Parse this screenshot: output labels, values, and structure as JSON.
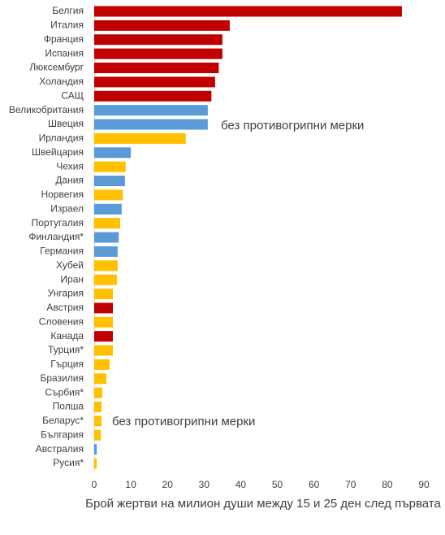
{
  "chart_data": {
    "type": "barh",
    "x_label": "Брой жертви на милион души между 15 и 25 ден след първата",
    "annotations": [
      "без противогрипни мерки",
      "без противогрипни мерки"
    ],
    "categories": [
      "Белгия",
      "Италия",
      "Франция",
      "Испания",
      "Люксембург",
      "Холандия",
      "САЩ",
      "Великобритания",
      "Швеция",
      "Ирландия",
      "Швейцария",
      "Чехия",
      "Дания",
      "Норвегия",
      "Израел",
      "Португалия",
      "Финландия*",
      "Германия",
      "Хубей",
      "Иран",
      "Унгария",
      "Австрия",
      "Словения",
      "Канада",
      "Турция*",
      "Гърция",
      "Бразилия",
      "Сърбия*",
      "Полша",
      "Беларус*",
      "България",
      "Австралия",
      "Русия*"
    ],
    "values": [
      84,
      37,
      35,
      35,
      34,
      33,
      32,
      31,
      31,
      25,
      10,
      8.6,
      8.4,
      7.8,
      7.5,
      7.1,
      6.7,
      6.4,
      6.4,
      6.2,
      5.1,
      5.1,
      5.1,
      5.1,
      5.1,
      4.2,
      3.3,
      2.2,
      2,
      2,
      1.8,
      0.7,
      0.7
    ],
    "colors": [
      "#c00000",
      "#c00000",
      "#c00000",
      "#c00000",
      "#c00000",
      "#c00000",
      "#c00000",
      "#5b9bd5",
      "#5b9bd5",
      "#ffc000",
      "#5b9bd5",
      "#ffc000",
      "#5b9bd5",
      "#ffc000",
      "#5b9bd5",
      "#ffc000",
      "#5b9bd5",
      "#5b9bd5",
      "#ffc000",
      "#ffc000",
      "#ffc000",
      "#c00000",
      "#ffc000",
      "#c00000",
      "#ffc000",
      "#ffc000",
      "#ffc000",
      "#ffc000",
      "#ffc000",
      "#ffc000",
      "#ffc000",
      "#5b9bd5",
      "#ffc000"
    ],
    "xlim": [
      0,
      90
    ],
    "xticks": [
      0,
      10,
      20,
      30,
      40,
      50,
      60,
      70,
      80,
      90
    ],
    "grid": false
  }
}
